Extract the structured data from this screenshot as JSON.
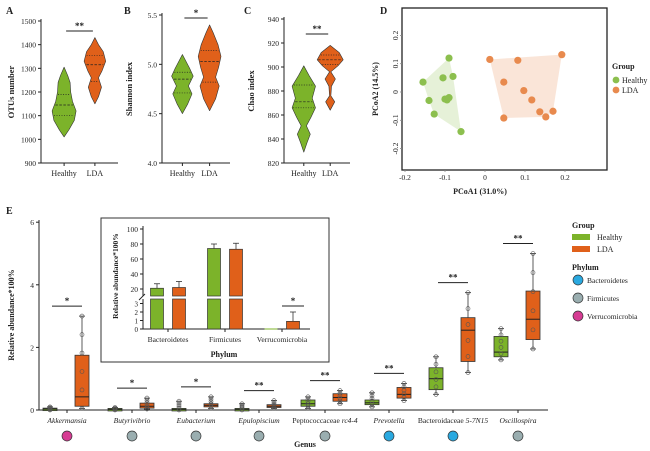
{
  "colors": {
    "healthy": "#7cb32a",
    "lda": "#e0601a",
    "healthy_pcoa": "#8cbf4e",
    "lda_pcoa": "#e88a4e",
    "bacteroidetes": "#2aa9e0",
    "firmicutes": "#9aaeb0",
    "verrucomicrobia": "#d63c93"
  },
  "chart_data": [
    {
      "panel": "A",
      "type": "violin",
      "categories": [
        "Healthy",
        "LDA"
      ],
      "ylabel": "OTUs  number",
      "ylim": [
        900,
        1500
      ],
      "yticks": [
        900,
        1000,
        1100,
        1200,
        1300,
        1400,
        1500
      ],
      "significance": "**",
      "series": [
        {
          "name": "Healthy",
          "min": 1010,
          "max": 1305,
          "q1": 1100,
          "median": 1145,
          "q3": 1190,
          "widths": [
            [
              1010,
              0
            ],
            [
              1040,
              0.4
            ],
            [
              1080,
              0.85
            ],
            [
              1120,
              1
            ],
            [
              1160,
              0.7
            ],
            [
              1200,
              0.55
            ],
            [
              1240,
              0.5
            ],
            [
              1270,
              0.3
            ],
            [
              1305,
              0
            ]
          ]
        },
        {
          "name": "LDA",
          "min": 1150,
          "max": 1430,
          "q1": 1245,
          "median": 1315,
          "q3": 1355,
          "widths": [
            [
              1150,
              0
            ],
            [
              1180,
              0.3
            ],
            [
              1220,
              0.55
            ],
            [
              1260,
              0.3
            ],
            [
              1290,
              0.6
            ],
            [
              1330,
              0.9
            ],
            [
              1370,
              0.7
            ],
            [
              1400,
              0.3
            ],
            [
              1430,
              0
            ]
          ]
        }
      ]
    },
    {
      "panel": "B",
      "type": "violin",
      "categories": [
        "Healthy",
        "LDA"
      ],
      "ylabel": "Shannon index",
      "ylim": [
        4.0,
        5.5
      ],
      "yticks": [
        4.0,
        4.5,
        5.0,
        5.5
      ],
      "significance": "*",
      "series": [
        {
          "name": "Healthy",
          "min": 4.5,
          "max": 5.1,
          "q1": 4.71,
          "median": 4.85,
          "q3": 4.92,
          "widths": [
            [
              4.5,
              0
            ],
            [
              4.6,
              0.45
            ],
            [
              4.7,
              0.8
            ],
            [
              4.78,
              0.5
            ],
            [
              4.88,
              0.9
            ],
            [
              4.96,
              0.6
            ],
            [
              5.03,
              0.3
            ],
            [
              5.1,
              0
            ]
          ]
        },
        {
          "name": "LDA",
          "min": 4.53,
          "max": 5.4,
          "q1": 4.82,
          "median": 5.03,
          "q3": 5.14,
          "widths": [
            [
              4.53,
              0
            ],
            [
              4.65,
              0.5
            ],
            [
              4.78,
              0.8
            ],
            [
              4.87,
              0.5
            ],
            [
              4.97,
              0.75
            ],
            [
              5.08,
              0.95
            ],
            [
              5.2,
              0.7
            ],
            [
              5.32,
              0.3
            ],
            [
              5.4,
              0
            ]
          ]
        }
      ]
    },
    {
      "panel": "C",
      "type": "violin",
      "categories": [
        "Healthy",
        "LDA"
      ],
      "ylabel": "Chao index",
      "ylim": [
        820,
        940
      ],
      "yticks": [
        820,
        840,
        860,
        880,
        900,
        920,
        940
      ],
      "significance": "**",
      "series": [
        {
          "name": "Healthy",
          "min": 829,
          "max": 901,
          "q1": 866,
          "median": 871,
          "q3": 885,
          "widths": [
            [
              829,
              0
            ],
            [
              837,
              0.25
            ],
            [
              844,
              0.5
            ],
            [
              851,
              0.2
            ],
            [
              858,
              0.55
            ],
            [
              866,
              0.9
            ],
            [
              874,
              0.65
            ],
            [
              884,
              0.9
            ],
            [
              893,
              0.4
            ],
            [
              901,
              0
            ]
          ]
        },
        {
          "name": "LDA",
          "min": 864,
          "max": 918,
          "q1": 902,
          "median": 906,
          "q3": 910,
          "widths": [
            [
              864,
              0
            ],
            [
              871,
              0.35
            ],
            [
              876,
              0.05
            ],
            [
              884,
              0.1
            ],
            [
              890,
              0.4
            ],
            [
              896,
              0.05
            ],
            [
              901,
              0.6
            ],
            [
              906,
              1
            ],
            [
              912,
              0.7
            ],
            [
              918,
              0
            ]
          ]
        }
      ]
    },
    {
      "panel": "D",
      "type": "scatter",
      "xlabel": "PCoA1 (31.0%)",
      "ylabel": "PCoA2 (14.5%)",
      "xlim": [
        -0.2,
        0.3
      ],
      "ylim": [
        -0.27,
        0.3
      ],
      "xticks": [
        -0.2,
        -0.1,
        0,
        0.1,
        0.2
      ],
      "yticks": [
        -0.2,
        -0.1,
        0,
        0.1,
        0.2
      ],
      "legend_title": "Group",
      "legend_position": "right",
      "series": [
        {
          "name": "Healthy",
          "points": [
            [
              -0.09,
              0.12
            ],
            [
              -0.155,
              0.035
            ],
            [
              -0.105,
              0.05
            ],
            [
              -0.08,
              0.055
            ],
            [
              -0.14,
              -0.03
            ],
            [
              -0.1,
              -0.025
            ],
            [
              -0.095,
              -0.028
            ],
            [
              -0.09,
              -0.02
            ],
            [
              -0.127,
              -0.078
            ],
            [
              -0.06,
              -0.14
            ]
          ]
        },
        {
          "name": "LDA",
          "points": [
            [
              0.012,
              0.115
            ],
            [
              0.082,
              0.112
            ],
            [
              0.192,
              0.132
            ],
            [
              0.047,
              0.035
            ],
            [
              0.097,
              0.005
            ],
            [
              0.117,
              -0.028
            ],
            [
              0.137,
              -0.07
            ],
            [
              0.152,
              -0.088
            ],
            [
              0.17,
              -0.068
            ],
            [
              0.047,
              -0.092
            ]
          ]
        }
      ]
    },
    {
      "panel": "E",
      "type": "box",
      "xlabel": "Genus",
      "ylabel": "Relative abundance*100%",
      "ylim": [
        0,
        6
      ],
      "yticks": [
        0,
        2,
        4,
        6
      ],
      "categories": [
        "Akkermansia",
        "Butyrivibrio",
        "Eubacterium",
        "Epulopiscium",
        "Peptococcaceae rc4-4",
        "Prevotella",
        "Bacteroidaceae 5-7N15",
        "Oscillospira"
      ],
      "italic": [
        true,
        true,
        true,
        true,
        false,
        true,
        false,
        true
      ],
      "italic_suffix": [
        false,
        false,
        false,
        false,
        true,
        false,
        true,
        false
      ],
      "phylum": [
        "verrucomicrobia",
        "firmicutes",
        "firmicutes",
        "firmicutes",
        "firmicutes",
        "bacteroidetes",
        "bacteroidetes",
        "firmicutes"
      ],
      "significance": [
        "*",
        "*",
        "*",
        "**",
        "**",
        "**",
        "**",
        "**"
      ],
      "series": [
        {
          "name": "Healthy",
          "boxes": [
            {
              "min": 0.0,
              "q1": 0.01,
              "median": 0.03,
              "q3": 0.06,
              "max": 0.1
            },
            {
              "min": 0.0,
              "q1": 0.01,
              "median": 0.02,
              "q3": 0.05,
              "max": 0.08
            },
            {
              "min": 0.0,
              "q1": 0.0,
              "median": 0.02,
              "q3": 0.05,
              "max": 0.28
            },
            {
              "min": 0.0,
              "q1": 0.0,
              "median": 0.02,
              "q3": 0.05,
              "max": 0.2
            },
            {
              "min": 0.05,
              "q1": 0.12,
              "median": 0.2,
              "q3": 0.32,
              "max": 0.42
            },
            {
              "min": 0.1,
              "q1": 0.17,
              "median": 0.23,
              "q3": 0.32,
              "max": 0.55
            },
            {
              "min": 0.5,
              "q1": 0.65,
              "median": 1.0,
              "q3": 1.35,
              "max": 1.7
            },
            {
              "min": 1.6,
              "q1": 1.7,
              "median": 1.85,
              "q3": 2.35,
              "max": 2.6
            }
          ]
        },
        {
          "name": "LDA",
          "boxes": [
            {
              "min": 0.05,
              "q1": 0.12,
              "median": 0.42,
              "q3": 1.75,
              "max": 3.0
            },
            {
              "min": 0.03,
              "q1": 0.06,
              "median": 0.12,
              "q3": 0.22,
              "max": 0.38
            },
            {
              "min": 0.05,
              "q1": 0.1,
              "median": 0.15,
              "q3": 0.2,
              "max": 0.42
            },
            {
              "min": 0.05,
              "q1": 0.08,
              "median": 0.12,
              "q3": 0.17,
              "max": 0.3
            },
            {
              "min": 0.2,
              "q1": 0.28,
              "median": 0.4,
              "q3": 0.52,
              "max": 0.62
            },
            {
              "min": 0.3,
              "q1": 0.38,
              "median": 0.5,
              "q3": 0.72,
              "max": 0.85
            },
            {
              "min": 1.2,
              "q1": 1.55,
              "median": 2.55,
              "q3": 2.95,
              "max": 3.75
            },
            {
              "min": 1.95,
              "q1": 2.25,
              "median": 2.9,
              "q3": 3.8,
              "max": 5.0
            }
          ]
        }
      ],
      "legend": {
        "group_title": "Group",
        "groups": [
          "Healthy",
          "LDA"
        ],
        "phylum_title": "Phylum",
        "phyla": [
          {
            "key": "bacteroidetes",
            "label": "Bacteroidetes"
          },
          {
            "key": "firmicutes",
            "label": "Firmicutes"
          },
          {
            "key": "verrucomicrobia",
            "label": "Verrucomicrobia"
          }
        ]
      }
    },
    {
      "panel": "E-inset",
      "type": "bar",
      "xlabel": "Phylum",
      "ylabel": "Relative abundance*100%",
      "categories": [
        "Bacteroidetes",
        "Firmicutes",
        "Verrucomicrobia"
      ],
      "axis_break": true,
      "yticks_upper": [
        20,
        40,
        60,
        80,
        100
      ],
      "yticks_lower": [
        0,
        1,
        2,
        3
      ],
      "significance": [
        null,
        null,
        "*"
      ],
      "series": [
        {
          "name": "Healthy",
          "values": [
            21,
            74,
            0.02
          ],
          "errors": [
            6,
            6,
            0
          ]
        },
        {
          "name": "LDA",
          "values": [
            22,
            73,
            0.9
          ],
          "errors": [
            8,
            8,
            1.1
          ]
        }
      ]
    }
  ],
  "labels": {
    "panel_a": "A",
    "panel_b": "B",
    "panel_c": "C",
    "panel_d": "D",
    "panel_e": "E"
  }
}
